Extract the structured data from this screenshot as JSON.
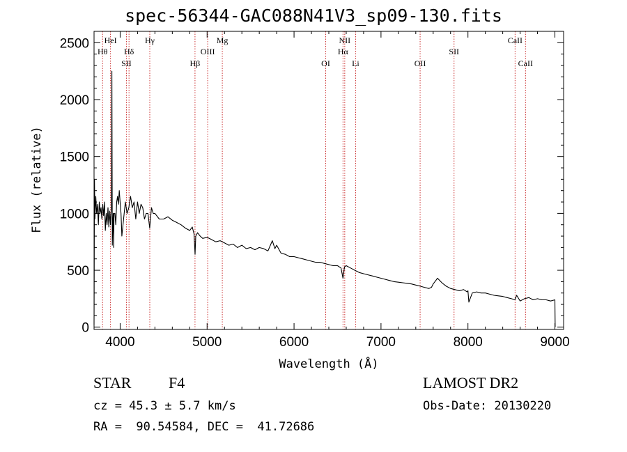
{
  "title": "spec-56344-GAC088N41V3_sp09-130.fits",
  "info": {
    "class": "STAR",
    "subclass": "F4",
    "survey": "LAMOST DR2",
    "cz": "cz = 45.3 ± 5.7 km/s",
    "obs_date": "Obs-Date: 20130220",
    "radec": "RA =  90.54584, DEC =  41.72686"
  },
  "colors": {
    "spectrum": "#000000",
    "line_marker": "#cc3333",
    "axes": "#000000"
  },
  "chart_data": {
    "type": "line",
    "title": "spec-56344-GAC088N41V3_sp09-130.fits",
    "xlabel": "Wavelength (Å)",
    "ylabel": "Flux (relative)",
    "xlim": [
      3700,
      9100
    ],
    "ylim": [
      -20,
      2600
    ],
    "xticks": [
      4000,
      5000,
      6000,
      7000,
      8000,
      9000
    ],
    "yticks": [
      0,
      500,
      1000,
      1500,
      2000,
      2500
    ],
    "grid": false,
    "series": [
      {
        "x": [
          3700,
          3705,
          3710,
          3720,
          3730,
          3740,
          3750,
          3760,
          3770,
          3780,
          3790,
          3800,
          3810,
          3820,
          3830,
          3840,
          3850,
          3860,
          3870,
          3880,
          3889,
          3895,
          3900,
          3905,
          3910,
          3915,
          3920,
          3925,
          3930,
          3940,
          3950,
          3960,
          3970,
          3980,
          3990,
          4000,
          4010,
          4020,
          4040,
          4060,
          4080,
          4100,
          4120,
          4140,
          4160,
          4180,
          4200,
          4220,
          4240,
          4260,
          4280,
          4300,
          4320,
          4340,
          4360,
          4380,
          4400,
          4450,
          4500,
          4550,
          4600,
          4650,
          4700,
          4750,
          4800,
          4830,
          4850,
          4862,
          4870,
          4890,
          4920,
          4950,
          5000,
          5050,
          5100,
          5150,
          5200,
          5250,
          5300,
          5350,
          5400,
          5450,
          5500,
          5550,
          5600,
          5650,
          5700,
          5750,
          5780,
          5800,
          5850,
          5900,
          5950,
          6000,
          6050,
          6100,
          6150,
          6200,
          6250,
          6300,
          6350,
          6400,
          6450,
          6500,
          6540,
          6563,
          6580,
          6600,
          6650,
          6700,
          6750,
          6800,
          6850,
          6900,
          6950,
          7000,
          7050,
          7100,
          7150,
          7200,
          7250,
          7300,
          7350,
          7400,
          7450,
          7500,
          7550,
          7580,
          7600,
          7620,
          7650,
          7700,
          7750,
          7800,
          7850,
          7900,
          7950,
          7990,
          8000,
          8010,
          8050,
          8100,
          8150,
          8200,
          8250,
          8300,
          8350,
          8400,
          8450,
          8500,
          8540,
          8560,
          8600,
          8650,
          8700,
          8750,
          8800,
          8850,
          8900,
          8950,
          9000,
          9003
        ],
        "y": [
          20,
          1300,
          950,
          1150,
          1000,
          1080,
          900,
          1100,
          1000,
          1050,
          950,
          1080,
          980,
          1100,
          850,
          1000,
          900,
          1050,
          880,
          1020,
          900,
          1000,
          1050,
          2250,
          720,
          900,
          1000,
          700,
          1000,
          1000,
          900,
          1100,
          1150,
          1080,
          1200,
          1100,
          1000,
          800,
          950,
          1100,
          1000,
          1050,
          1150,
          1050,
          1100,
          950,
          1100,
          1000,
          1080,
          1050,
          950,
          1000,
          1000,
          870,
          1050,
          1000,
          1000,
          950,
          950,
          970,
          940,
          920,
          900,
          870,
          850,
          880,
          820,
          640,
          800,
          830,
          800,
          780,
          790,
          770,
          750,
          760,
          740,
          720,
          730,
          700,
          720,
          690,
          700,
          680,
          700,
          690,
          670,
          760,
          690,
          720,
          650,
          640,
          620,
          620,
          610,
          600,
          590,
          580,
          570,
          570,
          560,
          550,
          540,
          540,
          520,
          430,
          530,
          540,
          520,
          500,
          480,
          470,
          460,
          450,
          440,
          430,
          420,
          410,
          400,
          395,
          390,
          385,
          380,
          370,
          360,
          350,
          340,
          350,
          380,
          400,
          430,
          390,
          360,
          340,
          330,
          320,
          330,
          310,
          320,
          220,
          300,
          310,
          300,
          300,
          290,
          280,
          275,
          270,
          260,
          250,
          240,
          280,
          230,
          250,
          260,
          240,
          250,
          240,
          240,
          230,
          240,
          0
        ]
      }
    ],
    "line_markers": [
      {
        "name": "Hθ",
        "x": 3798,
        "row": 2
      },
      {
        "name": "HeI",
        "x": 3889,
        "row": 1
      },
      {
        "name": "Hδ",
        "x": 4102,
        "row": 2
      },
      {
        "name": "SII",
        "x": 4072,
        "row": 3
      },
      {
        "name": "Hγ",
        "x": 4341,
        "row": 1
      },
      {
        "name": "Hβ",
        "x": 4861,
        "row": 3
      },
      {
        "name": "OIII",
        "x": 5007,
        "row": 2
      },
      {
        "name": "Mg",
        "x": 5175,
        "row": 1
      },
      {
        "name": "OI",
        "x": 6364,
        "row": 3
      },
      {
        "name": "NII",
        "x": 6583,
        "row": 1
      },
      {
        "name": "Hα",
        "x": 6563,
        "row": 2
      },
      {
        "name": "Li",
        "x": 6708,
        "row": 3
      },
      {
        "name": "OII",
        "x": 7450,
        "row": 3
      },
      {
        "name": "SII",
        "x": 7840,
        "row": 2
      },
      {
        "name": "CaII",
        "x": 8542,
        "row": 1
      },
      {
        "name": "CaII",
        "x": 8662,
        "row": 3
      }
    ]
  }
}
